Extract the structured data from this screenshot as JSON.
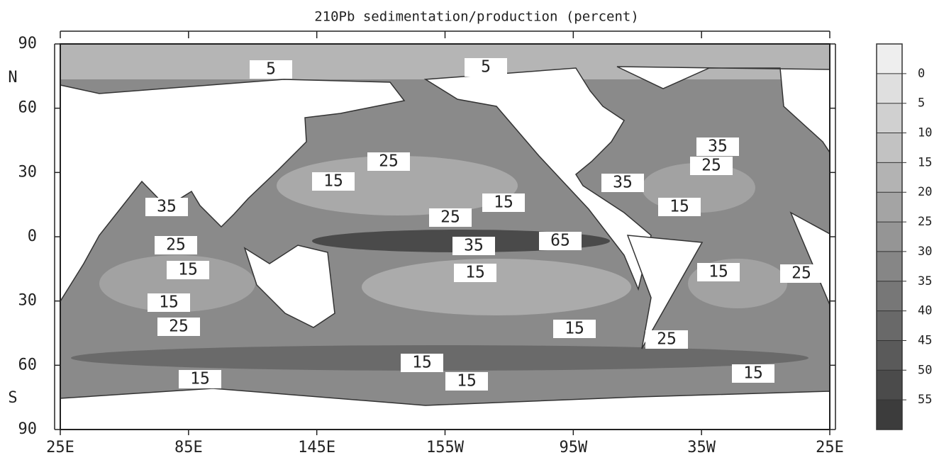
{
  "title": "210Pb sedimentation/production (percent)",
  "lat_labels": [
    "90",
    "60",
    "30",
    "0",
    "30",
    "60",
    "90"
  ],
  "hemisphere_labels": [
    "N",
    "S"
  ],
  "lon_labels": [
    "25E",
    "85E",
    "145E",
    "155W",
    "95W",
    "35W",
    "25E"
  ],
  "colorbar": {
    "ticks": [
      0,
      5,
      10,
      15,
      20,
      25,
      30,
      35,
      40,
      45,
      50,
      55
    ]
  },
  "contour_labels": [
    5,
    5,
    25,
    15,
    35,
    25,
    35,
    15,
    15,
    25,
    35,
    25,
    35,
    65,
    15,
    15,
    15,
    25,
    15,
    25,
    15,
    25,
    15,
    15,
    15,
    15
  ]
}
